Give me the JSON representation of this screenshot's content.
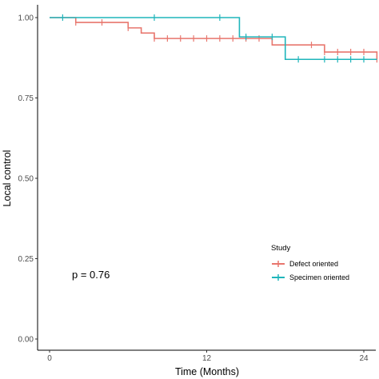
{
  "chart_data": {
    "type": "line",
    "subtype": "kaplan-meier step",
    "xlabel": "Time (Months)",
    "ylabel": "Local control",
    "xlim": [
      0,
      25.5
    ],
    "ylim": [
      0,
      1.0
    ],
    "x_ticks": [
      0,
      12,
      24
    ],
    "y_ticks": [
      0.0,
      0.25,
      0.5,
      0.75,
      1.0
    ],
    "x_tick_labels": [
      "0",
      "12",
      "24"
    ],
    "y_tick_labels": [
      "0.00",
      "0.25",
      "0.50",
      "0.75",
      "1.00"
    ],
    "grid": false,
    "legend_position": "right",
    "legend_title": "Study",
    "annotation": "p = 0.76",
    "series": [
      {
        "name": "Defect oriented",
        "color": "#e8766d",
        "steps": [
          [
            0,
            1.0
          ],
          [
            2,
            0.985
          ],
          [
            6,
            0.968
          ],
          [
            7,
            0.952
          ],
          [
            8,
            0.935
          ],
          [
            17,
            0.915
          ],
          [
            21,
            0.893
          ],
          [
            25,
            0.87
          ]
        ],
        "censored": [
          [
            2,
            0.985
          ],
          [
            4,
            0.985
          ],
          [
            6,
            0.968
          ],
          [
            8,
            0.935
          ],
          [
            9,
            0.935
          ],
          [
            10,
            0.935
          ],
          [
            11,
            0.935
          ],
          [
            12,
            0.935
          ],
          [
            13,
            0.935
          ],
          [
            14,
            0.935
          ],
          [
            15,
            0.935
          ],
          [
            16,
            0.935
          ],
          [
            18,
            0.915
          ],
          [
            20,
            0.915
          ],
          [
            21,
            0.893
          ],
          [
            22,
            0.893
          ],
          [
            23,
            0.893
          ],
          [
            24,
            0.893
          ],
          [
            25,
            0.87
          ]
        ]
      },
      {
        "name": "Specimen oriented",
        "color": "#1fb5bb",
        "steps": [
          [
            0,
            1.0
          ],
          [
            14.5,
            0.94
          ],
          [
            18,
            0.87
          ],
          [
            25,
            0.87
          ]
        ],
        "censored": [
          [
            1,
            1.0
          ],
          [
            8,
            1.0
          ],
          [
            13,
            1.0
          ],
          [
            15,
            0.94
          ],
          [
            17,
            0.94
          ],
          [
            19,
            0.87
          ],
          [
            21,
            0.87
          ],
          [
            22,
            0.87
          ],
          [
            23,
            0.87
          ],
          [
            24,
            0.87
          ]
        ]
      }
    ]
  }
}
